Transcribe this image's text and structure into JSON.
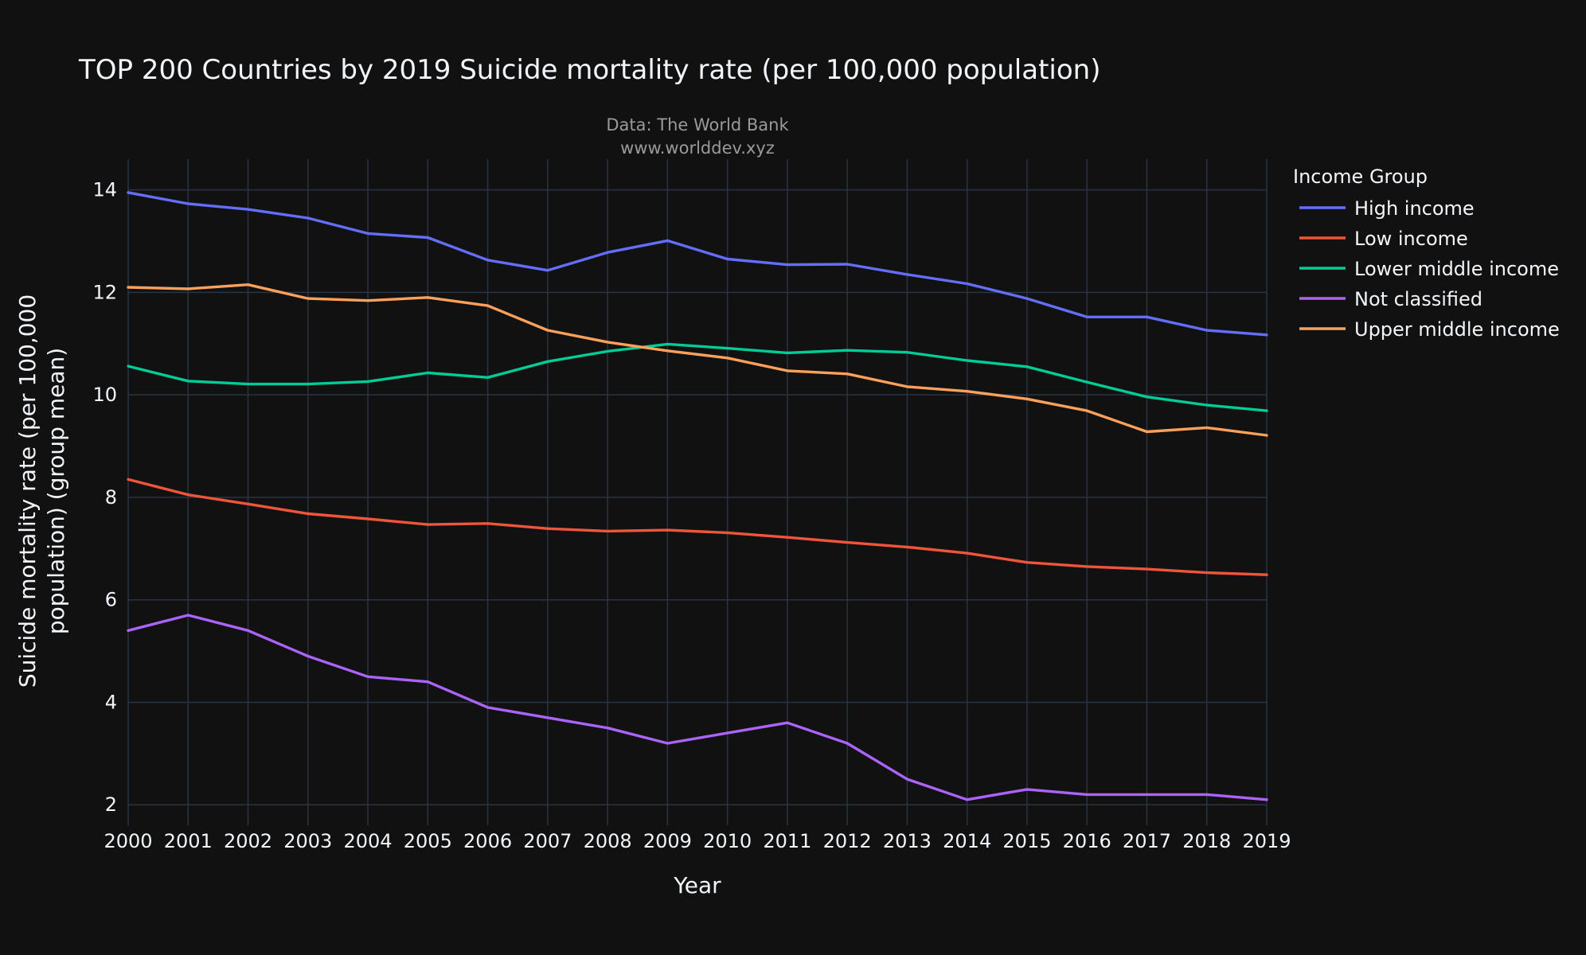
{
  "chart_data": {
    "type": "line",
    "title": "TOP 200 Countries by 2019 Suicide mortality rate (per 100,000 population)",
    "annotation": [
      "Data: The World Bank",
      "www.worlddev.xyz"
    ],
    "xlabel": "Year",
    "ylabel": [
      "Suicide mortality rate (per 100,000",
      "population) (group mean)"
    ],
    "x": [
      2000,
      2001,
      2002,
      2003,
      2004,
      2005,
      2006,
      2007,
      2008,
      2009,
      2010,
      2011,
      2012,
      2013,
      2014,
      2015,
      2016,
      2017,
      2018,
      2019
    ],
    "xlim": [
      2000,
      2019
    ],
    "ylim": [
      1.6,
      14.6
    ],
    "yticks": [
      2,
      4,
      6,
      8,
      10,
      12,
      14
    ],
    "grid": true,
    "legend": {
      "title": "Income Group",
      "position": "top-right"
    },
    "series": [
      {
        "name": "High income",
        "color": "#636efa",
        "values": [
          13.95,
          13.73,
          13.62,
          13.45,
          13.15,
          13.07,
          12.63,
          12.43,
          12.78,
          13.01,
          12.65,
          12.54,
          12.55,
          12.35,
          12.17,
          11.88,
          11.52,
          11.52,
          11.26,
          11.17
        ]
      },
      {
        "name": "Low income",
        "color": "#ef553b",
        "values": [
          8.35,
          8.05,
          7.87,
          7.68,
          7.58,
          7.47,
          7.49,
          7.39,
          7.34,
          7.36,
          7.31,
          7.22,
          7.12,
          7.03,
          6.91,
          6.73,
          6.65,
          6.6,
          6.53,
          6.49
        ]
      },
      {
        "name": "Lower middle income",
        "color": "#00cc96",
        "values": [
          10.56,
          10.27,
          10.21,
          10.21,
          10.26,
          10.43,
          10.34,
          10.65,
          10.85,
          10.99,
          10.91,
          10.82,
          10.87,
          10.83,
          10.67,
          10.55,
          10.25,
          9.96,
          9.8,
          9.69
        ]
      },
      {
        "name": "Not classified",
        "color": "#ab63fa",
        "values": [
          5.4,
          5.7,
          5.4,
          4.9,
          4.5,
          4.4,
          3.9,
          3.7,
          3.5,
          3.2,
          3.4,
          3.6,
          3.2,
          2.5,
          2.1,
          2.3,
          2.2,
          2.2,
          2.2,
          2.1
        ]
      },
      {
        "name": "Upper middle income",
        "color": "#ffa15a",
        "values": [
          12.1,
          12.07,
          12.15,
          11.88,
          11.84,
          11.9,
          11.74,
          11.26,
          11.03,
          10.86,
          10.72,
          10.47,
          10.41,
          10.16,
          10.07,
          9.92,
          9.69,
          9.28,
          9.36,
          9.21
        ]
      }
    ]
  }
}
